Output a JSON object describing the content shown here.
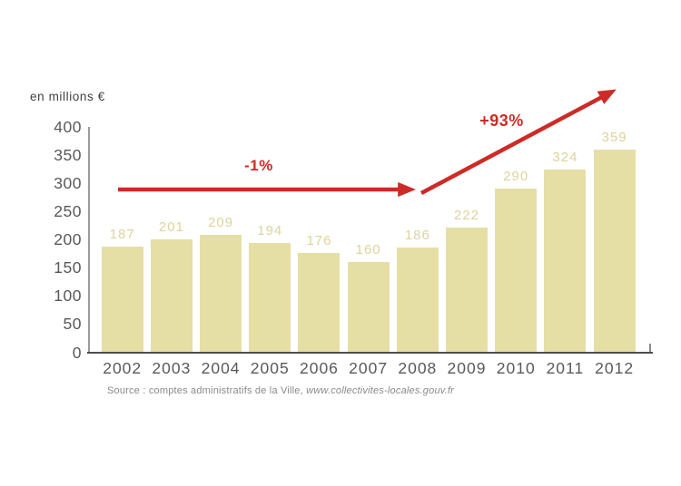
{
  "chart_data": {
    "type": "bar",
    "title": "",
    "unit_label": "en millions €",
    "categories": [
      "2002",
      "2003",
      "2004",
      "2005",
      "2006",
      "2007",
      "2008",
      "2009",
      "2010",
      "2011",
      "2012"
    ],
    "values": [
      187,
      201,
      209,
      194,
      176,
      160,
      186,
      222,
      290,
      324,
      359
    ],
    "xlabel": "",
    "ylabel": "en millions €",
    "ylim": [
      0,
      400
    ],
    "yticks": [
      400,
      350,
      300,
      250,
      200,
      150,
      100,
      50,
      0
    ],
    "grid": false,
    "legend": "none",
    "bar_value_labels": true,
    "annotations": [
      {
        "label": "-1%",
        "span": "2002-2008",
        "shape": "flat-horizontal-arrow"
      },
      {
        "label": "+93%",
        "span": "2008-2012",
        "shape": "rising-diagonal-arrow"
      }
    ]
  },
  "source": {
    "prefix": "Source : comptes administratifs de la Ville, ",
    "url": "www.collectivites-locales.gouv.fr"
  },
  "colors": {
    "bar": "#e5dfa6",
    "bar_label": "#ddd49c",
    "arrow_red": "#cd2b27",
    "tick_label": "#58595b",
    "axis_line": "#4d4d4f",
    "source_text": "#87898c"
  }
}
